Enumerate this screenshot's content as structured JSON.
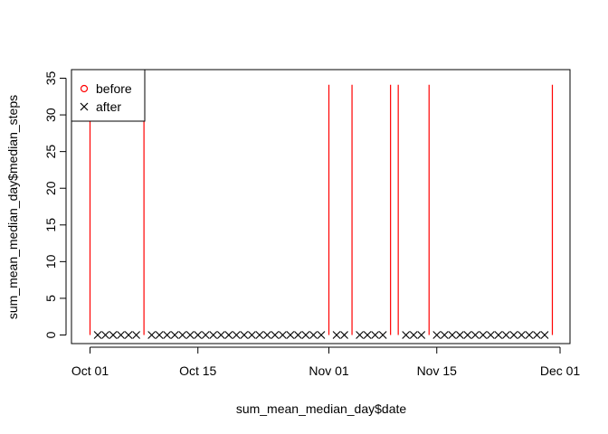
{
  "chart_data": {
    "type": "line",
    "title": "",
    "xlabel": "sum_mean_median_day$date",
    "ylabel": "sum_mean_median_day$median_steps",
    "x_tick_labels": [
      "Oct 01",
      "Oct 15",
      "Nov 01",
      "Nov 15",
      "Dec 01"
    ],
    "x_tick_days": [
      0,
      14,
      31,
      45,
      61
    ],
    "xlim_days": [
      0,
      60
    ],
    "y_ticks": [
      0,
      5,
      10,
      15,
      20,
      25,
      30,
      35
    ],
    "ylim": [
      0,
      35
    ],
    "grid": false,
    "legend": {
      "position": "top-left",
      "entries": [
        {
          "label": "before",
          "symbol": "circle",
          "color": "#ff0000"
        },
        {
          "label": "after",
          "symbol": "cross",
          "color": "#000000"
        }
      ]
    },
    "series": [
      {
        "name": "before",
        "style": "vertical-spikes",
        "color": "#ff0000",
        "note": "days with missing median values drawn as full-height spikes",
        "spike_days": [
          0,
          7,
          31,
          34,
          39,
          40,
          44,
          60
        ],
        "spike_value": 34.11
      },
      {
        "name": "after",
        "style": "points",
        "symbol": "cross",
        "color": "#000000",
        "days": [
          1,
          2,
          3,
          4,
          5,
          6,
          8,
          9,
          10,
          11,
          12,
          13,
          14,
          15,
          16,
          17,
          18,
          19,
          20,
          21,
          22,
          23,
          24,
          25,
          26,
          27,
          28,
          29,
          30,
          32,
          33,
          35,
          36,
          37,
          38,
          41,
          42,
          43,
          45,
          46,
          47,
          48,
          49,
          50,
          51,
          52,
          53,
          54,
          55,
          56,
          57,
          58,
          59
        ],
        "value": 0
      }
    ]
  }
}
